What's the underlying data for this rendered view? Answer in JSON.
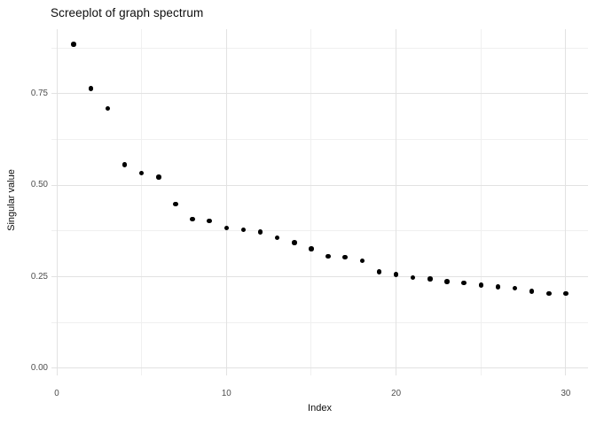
{
  "title": "Screeplot of graph spectrum",
  "axis": {
    "x_label": "Index",
    "y_label": "Singular value"
  },
  "colors": {
    "background": "#ffffff",
    "point": "#000000",
    "grid_major": "#e2e2e2",
    "grid_minor": "#f0f0f0",
    "tick_label": "#4d4d4d",
    "text": "#0d0d0d"
  },
  "chart_data": {
    "type": "scatter",
    "title": "Screeplot of graph spectrum",
    "xlabel": "Index",
    "ylabel": "Singular value",
    "x": [
      1,
      2,
      3,
      4,
      5,
      6,
      7,
      8,
      9,
      10,
      11,
      12,
      13,
      14,
      15,
      16,
      17,
      18,
      19,
      20,
      21,
      22,
      23,
      24,
      25,
      26,
      27,
      28,
      29,
      30
    ],
    "y": [
      0.885,
      0.765,
      0.71,
      0.556,
      0.533,
      0.522,
      0.449,
      0.408,
      0.403,
      0.384,
      0.378,
      0.372,
      0.357,
      0.344,
      0.327,
      0.306,
      0.304,
      0.294,
      0.264,
      0.257,
      0.248,
      0.244,
      0.237,
      0.234,
      0.227,
      0.223,
      0.219,
      0.21,
      0.205,
      0.204
    ],
    "x_ticks": [
      {
        "v": 0,
        "label": "0"
      },
      {
        "v": 10,
        "label": "10"
      },
      {
        "v": 20,
        "label": "20"
      },
      {
        "v": 30,
        "label": "30"
      }
    ],
    "y_ticks": [
      {
        "v": 0.0,
        "label": "0.00"
      },
      {
        "v": 0.25,
        "label": "0.25"
      },
      {
        "v": 0.5,
        "label": "0.50"
      },
      {
        "v": 0.75,
        "label": "0.75"
      }
    ],
    "x_minor": [
      5,
      15,
      25
    ],
    "y_minor": [
      0.125,
      0.375,
      0.625,
      0.875
    ],
    "xlim": [
      -0.314,
      31.311
    ],
    "ylim": [
      -0.0194,
      0.9266
    ],
    "grid": true,
    "legend": "none"
  }
}
